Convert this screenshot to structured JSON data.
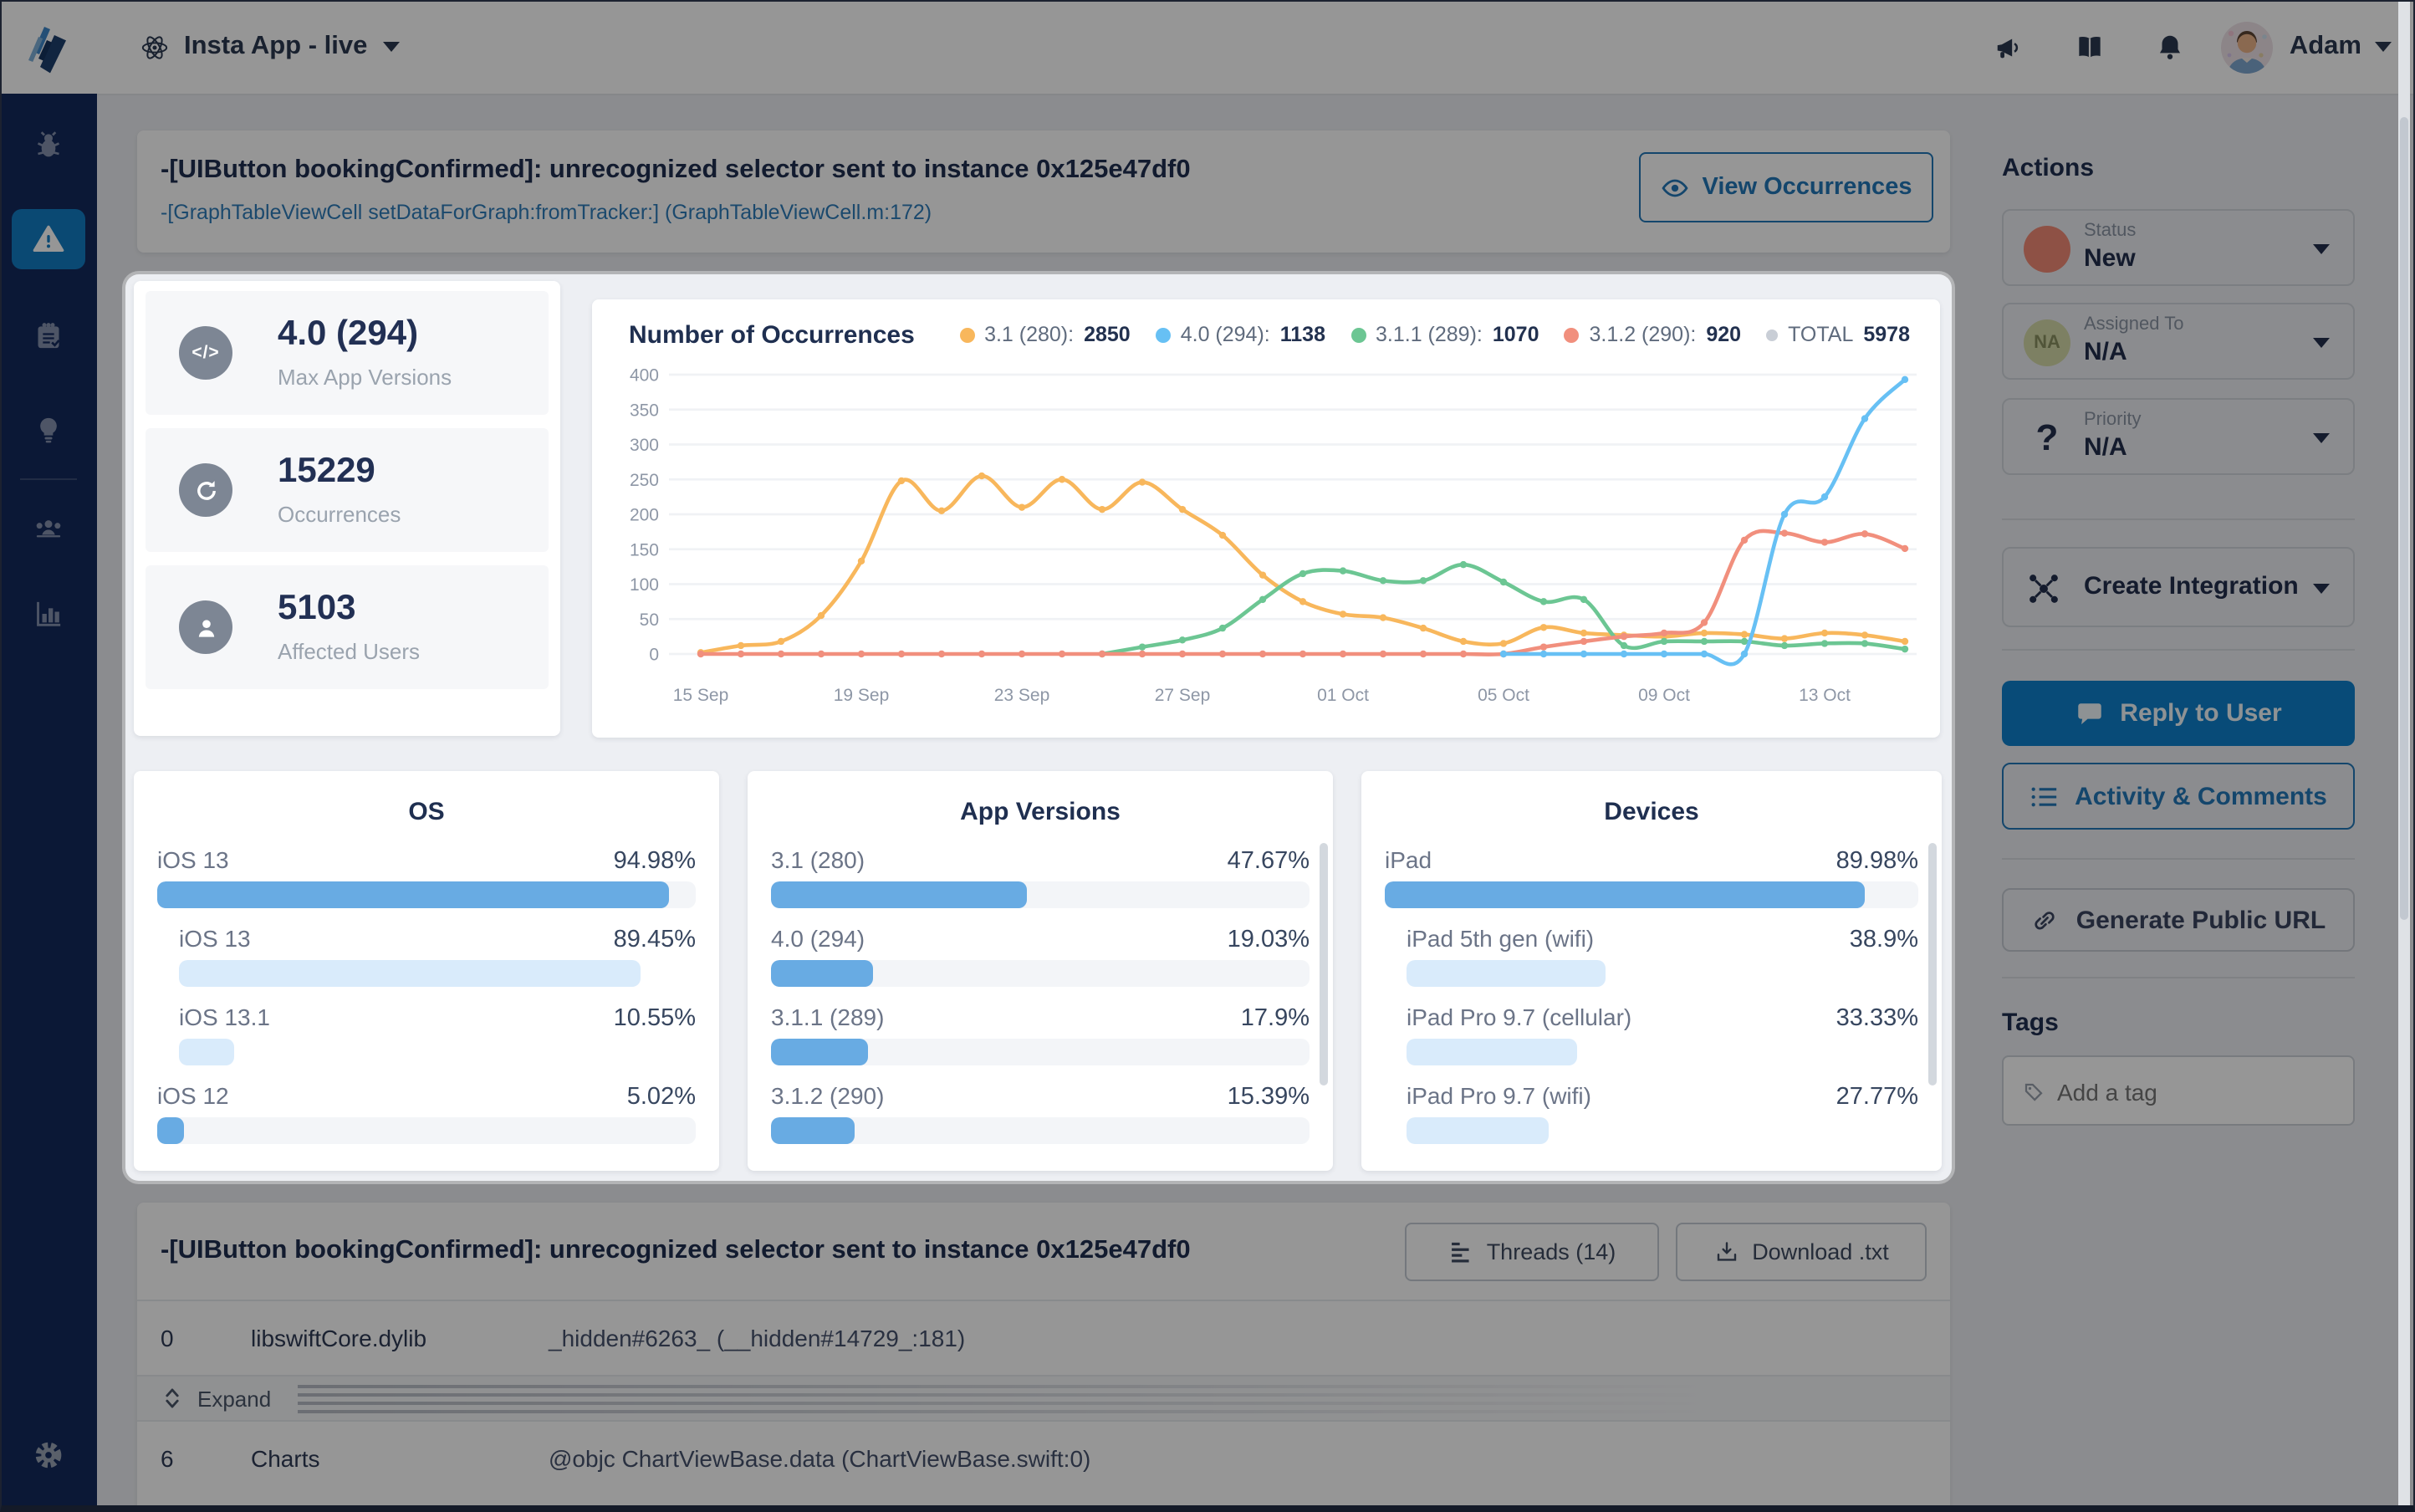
{
  "colors": {
    "accent_blue": "#2277b8",
    "reply_blue": "#0f80cc",
    "navy_text": "#1f2f50",
    "sidebar_navy": "#132a5c",
    "active_tile": "#117dc3",
    "bar_blue": "#68abe3",
    "bar_light_blue": "#d9ebfb",
    "status_new": "#f28a75"
  },
  "topbar": {
    "app_name": "Insta App - live",
    "user_name": "Adam"
  },
  "sidebar": {
    "items": [
      "bug-reports",
      "crashes",
      "surveys",
      "feature-requests",
      "team",
      "analytics"
    ],
    "active": "crashes",
    "footer": "settings"
  },
  "error": {
    "title": "-[UIButton bookingConfirmed]: unrecognized selector sent to instance 0x125e47df0",
    "location": "-[GraphTableViewCell setDataForGraph:fromTracker:] (GraphTableViewCell.m:172)",
    "view_occurrences_label": "View Occurrences"
  },
  "stats": [
    {
      "icon": "code-icon",
      "value": "4.0 (294)",
      "label": "Max App Versions"
    },
    {
      "icon": "refresh-icon",
      "value": "15229",
      "label": "Occurrences"
    },
    {
      "icon": "user-icon",
      "value": "5103",
      "label": "Affected Users"
    }
  ],
  "chart_data": {
    "type": "line",
    "title": "Number of Occurrences",
    "xlabel": "",
    "ylabel": "",
    "ylim": [
      0,
      400
    ],
    "yticks": [
      0,
      50,
      100,
      150,
      200,
      250,
      300,
      350,
      400
    ],
    "grid": "horizontal",
    "legend_position": "top-right",
    "x_ticks": [
      {
        "i": 0,
        "label": "15 Sep"
      },
      {
        "i": 4,
        "label": "19 Sep"
      },
      {
        "i": 8,
        "label": "23 Sep"
      },
      {
        "i": 12,
        "label": "27 Sep"
      },
      {
        "i": 16,
        "label": "01 Oct"
      },
      {
        "i": 20,
        "label": "05 Oct"
      },
      {
        "i": 24,
        "label": "09 Oct"
      },
      {
        "i": 28,
        "label": "13 Oct"
      }
    ],
    "legend": [
      {
        "label": "3.1 (280):",
        "value": "2850",
        "color": "#f8b75c"
      },
      {
        "label": "4.0 (294):",
        "value": "1138",
        "color": "#67c0f4"
      },
      {
        "label": "3.1.1 (289):",
        "value": "1070",
        "color": "#6cc693"
      },
      {
        "label": "3.1.2 (290):",
        "value": "920",
        "color": "#f18f7d"
      },
      {
        "label": "TOTAL",
        "value": "5978",
        "color": "#c9ced6"
      }
    ],
    "series": [
      {
        "name": "3.1 (280)",
        "color": "#f8b75c",
        "values": [
          2,
          12,
          18,
          55,
          133,
          248,
          205,
          255,
          210,
          250,
          207,
          246,
          207,
          170,
          113,
          75,
          57,
          52,
          37,
          18,
          15,
          38,
          30,
          27,
          25,
          30,
          28,
          22,
          30,
          27,
          18
        ]
      },
      {
        "name": "3.1.1 (289)",
        "color": "#6cc693",
        "values": [
          null,
          null,
          null,
          null,
          null,
          null,
          null,
          null,
          null,
          null,
          0,
          10,
          20,
          37,
          78,
          115,
          119,
          105,
          105,
          128,
          103,
          75,
          78,
          12,
          18,
          18,
          18,
          12,
          15,
          15,
          7
        ]
      },
      {
        "name": "3.1.2 (290)",
        "color": "#f18f7d",
        "values": [
          0,
          0,
          0,
          0,
          0,
          0,
          0,
          0,
          0,
          0,
          0,
          0,
          0,
          0,
          0,
          0,
          0,
          0,
          0,
          0,
          0,
          10,
          18,
          25,
          30,
          45,
          163,
          173,
          160,
          172,
          151
        ]
      },
      {
        "name": "4.0 (294)",
        "color": "#67c0f4",
        "values": [
          null,
          null,
          null,
          null,
          null,
          null,
          null,
          null,
          null,
          null,
          null,
          null,
          null,
          null,
          null,
          null,
          null,
          null,
          null,
          null,
          0,
          0,
          0,
          0,
          0,
          0,
          0,
          200,
          225,
          337,
          393
        ]
      }
    ]
  },
  "panels": [
    {
      "title": "OS",
      "scrollbar": false,
      "rows": [
        {
          "label": "iOS 13",
          "pct_label": "94.98%",
          "pct": 94.98,
          "style": "solid",
          "indent": false
        },
        {
          "label": "iOS 13",
          "pct_label": "89.45%",
          "pct": 89.45,
          "style": "light",
          "indent": true
        },
        {
          "label": "iOS 13.1",
          "pct_label": "10.55%",
          "pct": 10.55,
          "style": "light",
          "indent": true
        },
        {
          "label": "iOS 12",
          "pct_label": "5.02%",
          "pct": 5.02,
          "style": "solid",
          "indent": false
        }
      ]
    },
    {
      "title": "App Versions",
      "scrollbar": true,
      "rows": [
        {
          "label": "3.1 (280)",
          "pct_label": "47.67%",
          "pct": 47.67,
          "style": "solid",
          "indent": false
        },
        {
          "label": "4.0 (294)",
          "pct_label": "19.03%",
          "pct": 19.03,
          "style": "solid",
          "indent": false
        },
        {
          "label": "3.1.1 (289)",
          "pct_label": "17.9%",
          "pct": 17.9,
          "style": "solid",
          "indent": false
        },
        {
          "label": "3.1.2 (290)",
          "pct_label": "15.39%",
          "pct": 15.39,
          "style": "solid",
          "indent": false
        }
      ]
    },
    {
      "title": "Devices",
      "scrollbar": true,
      "rows": [
        {
          "label": "iPad",
          "pct_label": "89.98%",
          "pct": 89.98,
          "style": "solid",
          "indent": false
        },
        {
          "label": "iPad 5th gen (wifi)",
          "pct_label": "38.9%",
          "pct": 38.9,
          "style": "light",
          "indent": true
        },
        {
          "label": "iPad Pro 9.7 (cellular)",
          "pct_label": "33.33%",
          "pct": 33.33,
          "style": "light",
          "indent": true
        },
        {
          "label": "iPad Pro 9.7 (wifi)",
          "pct_label": "27.77%",
          "pct": 27.77,
          "style": "light",
          "indent": true
        }
      ]
    }
  ],
  "actions": {
    "heading": "Actions",
    "dropdowns": [
      {
        "label": "Status",
        "value": "New"
      },
      {
        "label": "Assigned To",
        "value": "N/A",
        "initials": "NA"
      },
      {
        "label": "Priority",
        "value": "N/A",
        "glyph": "?"
      }
    ],
    "create_integration_label": "Create Integration",
    "reply_label": "Reply to User",
    "activity_label": "Activity & Comments",
    "public_url_label": "Generate Public URL",
    "tags_heading": "Tags",
    "tag_input_placeholder": "Add a tag"
  },
  "trace": {
    "threads_label": "Threads (14)",
    "download_label": "Download .txt",
    "expand_label": "Expand",
    "rows": [
      {
        "index": "0",
        "module": "libswiftCore.dylib",
        "symbol": "_hidden#6263_ (__hidden#14729_:181)"
      },
      {
        "index": "6",
        "module": "Charts",
        "symbol": "@objc ChartViewBase.data (ChartViewBase.swift:0)"
      }
    ]
  }
}
